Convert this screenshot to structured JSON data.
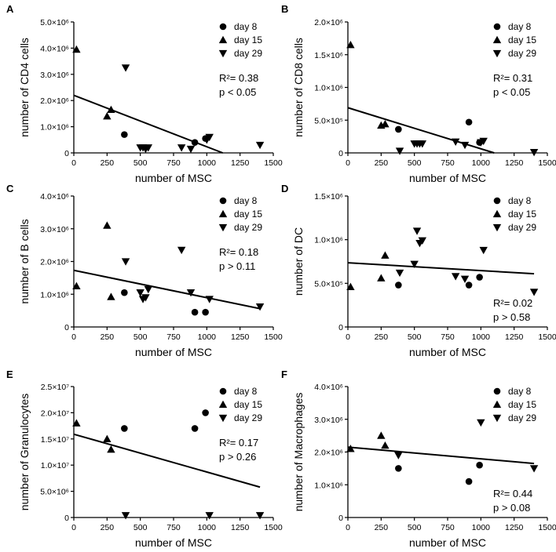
{
  "chart_data": [
    {
      "type": "scatter",
      "panel": "A",
      "xlabel": "number of MSC",
      "ylabel": "number of CD4 cells",
      "xlim": [
        0,
        1500
      ],
      "ylim": [
        0,
        5000000
      ],
      "xticks": [
        0,
        250,
        500,
        750,
        1000,
        1250,
        1500
      ],
      "yticks": [
        0,
        1000000,
        2000000,
        3000000,
        4000000,
        5000000
      ],
      "ytick_labels": [
        "0",
        "1.0×10⁶",
        "2.0×10⁶",
        "3.0×10⁶",
        "4.0×10⁶",
        "5.0×10⁶"
      ],
      "series": [
        {
          "name": "day 8",
          "marker": "circle",
          "x": [
            380,
            910,
            990
          ],
          "y": [
            700000,
            400000,
            550000
          ]
        },
        {
          "name": "day 15",
          "marker": "triangle-up",
          "x": [
            20,
            250,
            280
          ],
          "y": [
            3950000,
            1400000,
            1650000
          ]
        },
        {
          "name": "day 29",
          "marker": "triangle-down",
          "x": [
            390,
            500,
            520,
            540,
            560,
            810,
            880,
            1000,
            1020,
            1400
          ],
          "y": [
            3250000,
            200000,
            200000,
            150000,
            200000,
            200000,
            150000,
            500000,
            600000,
            300000
          ]
        }
      ],
      "fit": {
        "x": [
          0,
          1120
        ],
        "y": [
          2200000,
          0
        ]
      },
      "stats": {
        "r2": "R²= 0.38",
        "p": "p < 0.05"
      },
      "stats_position": "upper-right"
    },
    {
      "type": "scatter",
      "panel": "B",
      "xlabel": "number of MSC",
      "ylabel": "number of CD8 cells",
      "xlim": [
        0,
        1500
      ],
      "ylim": [
        0,
        2000000
      ],
      "xticks": [
        0,
        250,
        500,
        750,
        1000,
        1250,
        1500
      ],
      "yticks": [
        0,
        500000,
        1000000,
        1500000,
        2000000
      ],
      "ytick_labels": [
        "0",
        "5.0×10⁵",
        "1.0×10⁶",
        "1.5×10⁶",
        "2.0×10⁶"
      ],
      "series": [
        {
          "name": "day 8",
          "marker": "circle",
          "x": [
            380,
            910,
            990
          ],
          "y": [
            360000,
            470000,
            160000
          ]
        },
        {
          "name": "day 15",
          "marker": "triangle-up",
          "x": [
            20,
            250,
            280
          ],
          "y": [
            1650000,
            420000,
            440000
          ]
        },
        {
          "name": "day 29",
          "marker": "triangle-down",
          "x": [
            390,
            500,
            520,
            540,
            560,
            810,
            880,
            1000,
            1020,
            1400
          ],
          "y": [
            30000,
            140000,
            140000,
            140000,
            140000,
            170000,
            120000,
            160000,
            180000,
            10000
          ]
        }
      ],
      "fit": {
        "x": [
          0,
          1100
        ],
        "y": [
          690000,
          0
        ]
      },
      "stats": {
        "r2": "R²= 0.31",
        "p": "p < 0.05"
      },
      "stats_position": "upper-right"
    },
    {
      "type": "scatter",
      "panel": "C",
      "xlabel": "number of MSC",
      "ylabel": "number of B cells",
      "xlim": [
        0,
        1500
      ],
      "ylim": [
        0,
        4000000
      ],
      "xticks": [
        0,
        250,
        500,
        750,
        1000,
        1250,
        1500
      ],
      "yticks": [
        0,
        1000000,
        2000000,
        3000000,
        4000000
      ],
      "ytick_labels": [
        "0",
        "1.0×10⁶",
        "2.0×10⁶",
        "3.0×10⁶",
        "4.0×10⁶"
      ],
      "series": [
        {
          "name": "day 8",
          "marker": "circle",
          "x": [
            380,
            910,
            990
          ],
          "y": [
            1050000,
            450000,
            450000
          ]
        },
        {
          "name": "day 15",
          "marker": "triangle-up",
          "x": [
            20,
            250,
            280
          ],
          "y": [
            1250000,
            3100000,
            920000
          ]
        },
        {
          "name": "day 29",
          "marker": "triangle-down",
          "x": [
            390,
            500,
            520,
            540,
            560,
            810,
            880,
            1020,
            1400
          ],
          "y": [
            2000000,
            1050000,
            850000,
            900000,
            1150000,
            2350000,
            1050000,
            850000,
            620000
          ]
        }
      ],
      "fit": {
        "x": [
          0,
          1400
        ],
        "y": [
          1730000,
          560000
        ]
      },
      "stats": {
        "r2": "R²= 0.18",
        "p": "p > 0.11"
      },
      "stats_position": "upper-right"
    },
    {
      "type": "scatter",
      "panel": "D",
      "xlabel": "number of MSC",
      "ylabel": "number of DC",
      "xlim": [
        0,
        1500
      ],
      "ylim": [
        0,
        1500000
      ],
      "xticks": [
        0,
        250,
        500,
        750,
        1000,
        1250,
        1500
      ],
      "yticks": [
        0,
        500000,
        1000000,
        1500000
      ],
      "ytick_labels": [
        "0",
        "5.0×10⁵",
        "1.0×10⁶",
        "1.5×10⁶"
      ],
      "series": [
        {
          "name": "day 8",
          "marker": "circle",
          "x": [
            380,
            910,
            990
          ],
          "y": [
            480000,
            480000,
            570000
          ]
        },
        {
          "name": "day 15",
          "marker": "triangle-up",
          "x": [
            20,
            250,
            280
          ],
          "y": [
            460000,
            560000,
            820000
          ]
        },
        {
          "name": "day 29",
          "marker": "triangle-down",
          "x": [
            390,
            500,
            520,
            540,
            560,
            810,
            880,
            1020,
            1400
          ],
          "y": [
            620000,
            720000,
            1100000,
            960000,
            990000,
            580000,
            550000,
            880000,
            400000
          ]
        }
      ],
      "fit": {
        "x": [
          0,
          1400
        ],
        "y": [
          735000,
          610000
        ]
      },
      "stats": {
        "r2": "R²= 0.02",
        "p": "p > 0.58"
      },
      "stats_position": "lower-right"
    },
    {
      "type": "scatter",
      "panel": "E",
      "xlabel": "number of MSC",
      "ylabel": "number of Granulocytes",
      "xlim": [
        0,
        1500
      ],
      "ylim": [
        0,
        25000000
      ],
      "xticks": [
        0,
        250,
        500,
        750,
        1000,
        1250,
        1500
      ],
      "yticks": [
        0,
        5000000,
        10000000,
        15000000,
        20000000,
        25000000
      ],
      "ytick_labels": [
        "0",
        "5.0×10⁶",
        "1.0×10⁷",
        "1.5×10⁷",
        "2.0×10⁷",
        "2.5×10⁷"
      ],
      "series": [
        {
          "name": "day 8",
          "marker": "circle",
          "x": [
            380,
            910,
            990
          ],
          "y": [
            17000000,
            17000000,
            20000000
          ]
        },
        {
          "name": "day 15",
          "marker": "triangle-up",
          "x": [
            20,
            250,
            280
          ],
          "y": [
            18000000,
            15000000,
            13000000
          ]
        },
        {
          "name": "day 29",
          "marker": "triangle-down",
          "x": [
            390,
            1020,
            1400
          ],
          "y": [
            400000,
            400000,
            400000
          ]
        }
      ],
      "fit": {
        "x": [
          0,
          1400
        ],
        "y": [
          15900000,
          5800000
        ]
      },
      "stats": {
        "r2": "R²= 0.17",
        "p": "p > 0.26"
      },
      "stats_position": "upper-right"
    },
    {
      "type": "scatter",
      "panel": "F",
      "xlabel": "number of MSC",
      "ylabel": "number of Macrophages",
      "xlim": [
        0,
        1500
      ],
      "ylim": [
        0,
        4000000
      ],
      "xticks": [
        0,
        250,
        500,
        750,
        1000,
        1250,
        1500
      ],
      "yticks": [
        0,
        1000000,
        2000000,
        3000000,
        4000000
      ],
      "ytick_labels": [
        "0",
        "1.0×10⁶",
        "2.0×10⁶",
        "3.0×10⁶",
        "4.0×10⁶"
      ],
      "series": [
        {
          "name": "day 8",
          "marker": "circle",
          "x": [
            380,
            910,
            990
          ],
          "y": [
            1500000,
            1100000,
            1600000
          ]
        },
        {
          "name": "day 15",
          "marker": "triangle-up",
          "x": [
            20,
            250,
            280
          ],
          "y": [
            2100000,
            2500000,
            2200000
          ]
        },
        {
          "name": "day 29",
          "marker": "triangle-down",
          "x": [
            380,
            1000,
            1400
          ],
          "y": [
            1900000,
            2900000,
            1500000
          ]
        }
      ],
      "fit": {
        "x": [
          0,
          1400
        ],
        "y": [
          2150000,
          1650000
        ]
      },
      "stats": {
        "r2": "R²= 0.44",
        "p": "p > 0.08"
      },
      "stats_position": "lower-right"
    }
  ]
}
